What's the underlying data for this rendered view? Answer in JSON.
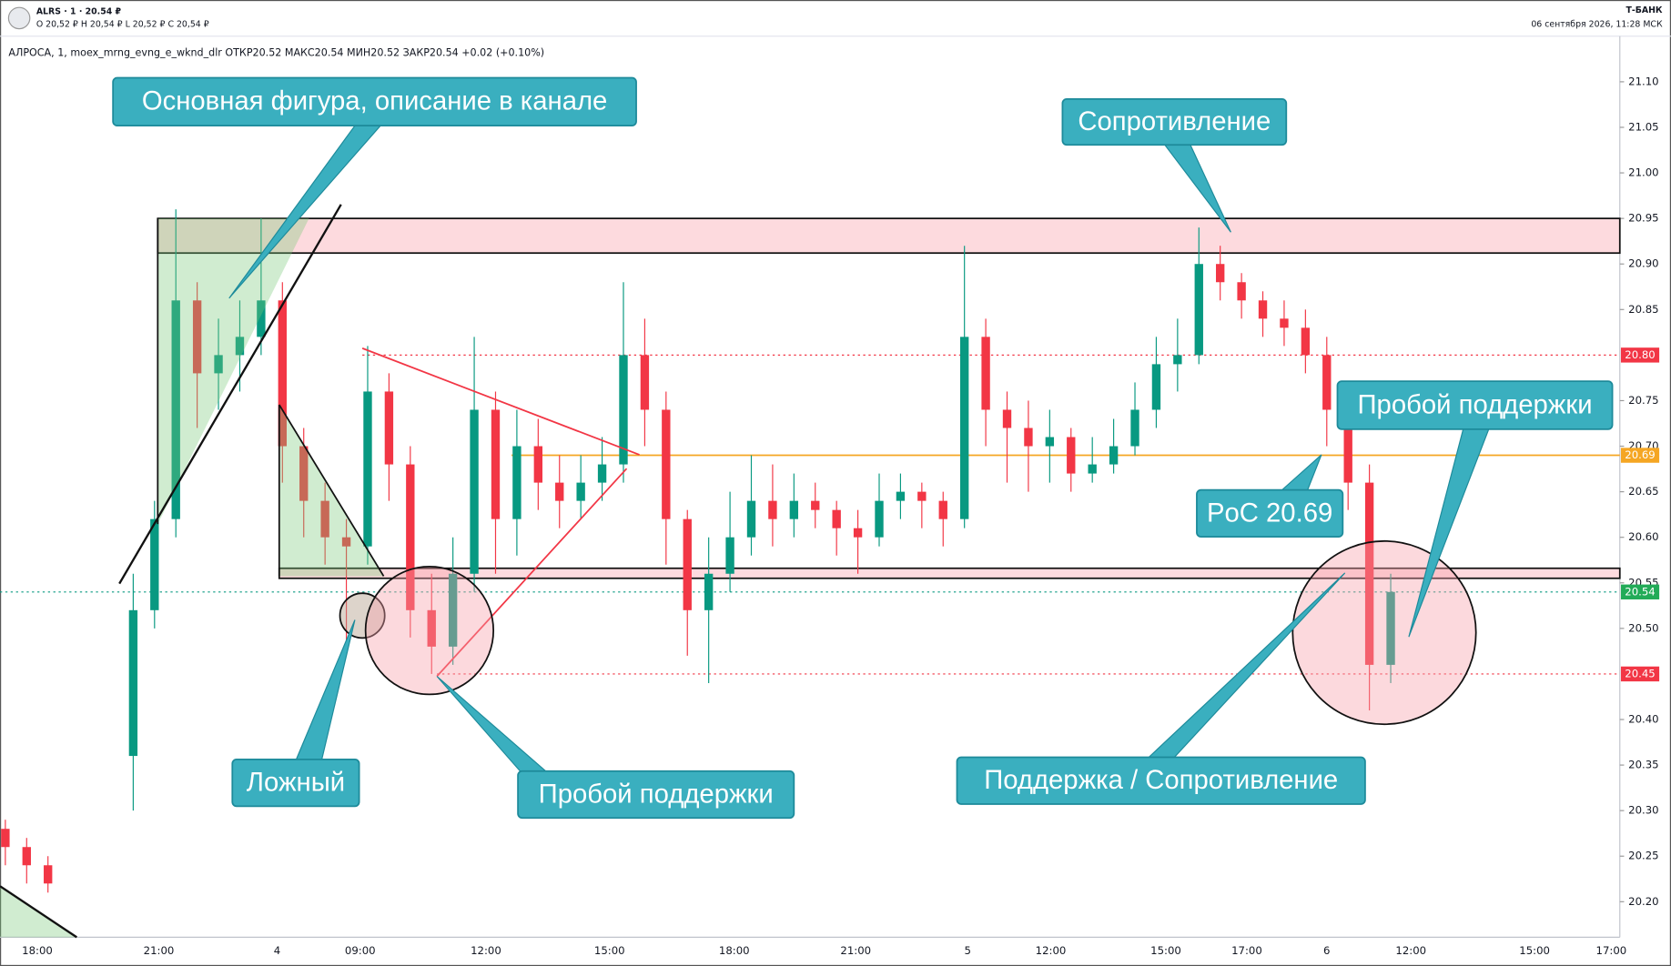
{
  "header": {
    "ticker": "ALRS · 1 · 20.54 ₽",
    "ohlc": "O 20,52 ₽  H 20,54 ₽  L 20,52 ₽  C 20,54 ₽",
    "brand": "Т-БАНК",
    "timestamp": "06 сентября 2026, 11:28 МСК",
    "legend": "АЛРОСА, 1, moex_mrng_evng_e_wknd_dlr  ОТКР20.52  МАКС20.54  МИН20.52  ЗАКР20.54  +0.02 (+0.10%)"
  },
  "chart_data": {
    "type": "candlestick",
    "up_color": "#089981",
    "down_color": "#f23645",
    "open": [
      20.28,
      20.26,
      20.24,
      null,
      null,
      null,
      20.36,
      20.52,
      20.62,
      20.86,
      20.78,
      20.8,
      20.82,
      20.86,
      20.7,
      20.64,
      20.6,
      20.59,
      20.76,
      20.68,
      20.52,
      20.48,
      20.56,
      20.74,
      20.62,
      20.7,
      20.66,
      20.64,
      20.66,
      20.68,
      20.8,
      20.74,
      20.62,
      20.52,
      20.56,
      20.6,
      20.64,
      20.62,
      20.64,
      20.63,
      20.61,
      20.6,
      20.64,
      20.65,
      20.64,
      20.62,
      20.82,
      20.74,
      20.72,
      20.7,
      20.71,
      20.67,
      20.68,
      20.7,
      20.74,
      20.79,
      20.8,
      20.9,
      20.88,
      20.86,
      20.84,
      20.83,
      20.8,
      20.74,
      20.66,
      20.46
    ],
    "high": [
      20.29,
      20.27,
      20.25,
      null,
      null,
      null,
      20.56,
      20.64,
      20.96,
      20.88,
      20.84,
      20.86,
      20.95,
      20.88,
      20.72,
      20.66,
      20.62,
      20.81,
      20.78,
      20.7,
      20.56,
      20.6,
      20.82,
      20.76,
      20.74,
      20.73,
      20.69,
      20.69,
      20.71,
      20.88,
      20.84,
      20.76,
      20.63,
      20.6,
      20.65,
      20.69,
      20.68,
      20.67,
      20.66,
      20.64,
      20.63,
      20.67,
      20.67,
      20.66,
      20.65,
      20.92,
      20.84,
      20.76,
      20.75,
      20.74,
      20.72,
      20.71,
      20.73,
      20.77,
      20.82,
      20.84,
      20.94,
      20.92,
      20.89,
      20.87,
      20.86,
      20.85,
      20.82,
      20.75,
      20.68,
      20.56
    ],
    "low": [
      20.24,
      20.22,
      20.21,
      null,
      null,
      null,
      20.3,
      20.5,
      20.6,
      20.72,
      20.74,
      20.76,
      20.8,
      20.66,
      20.6,
      20.57,
      20.48,
      20.57,
      20.64,
      20.49,
      20.45,
      20.46,
      20.54,
      20.56,
      20.58,
      20.63,
      20.61,
      20.62,
      20.64,
      20.66,
      20.7,
      20.57,
      20.47,
      20.44,
      20.54,
      20.58,
      20.59,
      20.6,
      20.61,
      20.58,
      20.56,
      20.59,
      20.62,
      20.61,
      20.59,
      20.61,
      20.7,
      20.66,
      20.65,
      20.66,
      20.65,
      20.66,
      20.67,
      20.69,
      20.72,
      20.76,
      20.79,
      20.86,
      20.84,
      20.82,
      20.81,
      20.78,
      20.7,
      20.63,
      20.41,
      20.44
    ],
    "close": [
      20.26,
      20.24,
      20.22,
      null,
      null,
      null,
      20.52,
      20.62,
      20.86,
      20.78,
      20.8,
      20.82,
      20.86,
      20.7,
      20.64,
      20.6,
      20.59,
      20.76,
      20.68,
      20.52,
      20.48,
      20.56,
      20.74,
      20.62,
      20.7,
      20.66,
      20.64,
      20.66,
      20.68,
      20.8,
      20.74,
      20.62,
      20.52,
      20.56,
      20.6,
      20.64,
      20.62,
      20.64,
      20.63,
      20.61,
      20.6,
      20.64,
      20.65,
      20.64,
      20.62,
      20.82,
      20.74,
      20.72,
      20.7,
      20.71,
      20.67,
      20.68,
      20.7,
      20.74,
      20.79,
      20.8,
      20.9,
      20.88,
      20.86,
      20.84,
      20.83,
      20.8,
      20.74,
      20.66,
      20.46,
      20.54
    ],
    "ylim": [
      20.161,
      21.143
    ],
    "yticks": [
      {
        "value": 20.2,
        "label": "20.20"
      },
      {
        "value": 20.25,
        "label": "20.25"
      },
      {
        "value": 20.3,
        "label": "20.30"
      },
      {
        "value": 20.35,
        "label": "20.35"
      },
      {
        "value": 20.4,
        "label": "20.40"
      },
      {
        "value": 20.5,
        "label": "20.50"
      },
      {
        "value": 20.55,
        "label": "20.55"
      },
      {
        "value": 20.6,
        "label": "20.60"
      },
      {
        "value": 20.65,
        "label": "20.65"
      },
      {
        "value": 20.7,
        "label": "20.70"
      },
      {
        "value": 20.75,
        "label": "20.75"
      },
      {
        "value": 20.85,
        "label": "20.85"
      },
      {
        "value": 20.9,
        "label": "20.90"
      },
      {
        "value": 20.95,
        "label": "20.95"
      },
      {
        "value": 21.0,
        "label": "21.00"
      },
      {
        "value": 21.05,
        "label": "21.05"
      },
      {
        "value": 21.1,
        "label": "21.10"
      }
    ],
    "x_axis_labels": [
      "18:00",
      "21:00",
      "4",
      "09:00",
      "12:00",
      "15:00",
      "18:00",
      "21:00",
      "5",
      "12:00",
      "15:00",
      "17:00",
      "6",
      "12:00",
      "15:00",
      "17:00"
    ],
    "price_lines": [
      {
        "value": 20.8,
        "label": "20.80",
        "color": "#f23645",
        "style": "dotted"
      },
      {
        "value": 20.69,
        "label": "20.69",
        "color": "#f5a623",
        "style": "solid"
      },
      {
        "value": 20.54,
        "label": "20.54",
        "color": "#089981",
        "style": "dotted"
      },
      {
        "value": 20.45,
        "label": "20.45",
        "color": "#f23645",
        "style": "dotted"
      }
    ],
    "zones": [
      {
        "low": 20.912,
        "high": 20.95
      },
      {
        "low": 20.555,
        "high": 20.566
      }
    ],
    "annotations": [
      "Основная фигура, описание в канале",
      "Сопротивление",
      "Пробой поддержки",
      "PoC 20.69",
      "Ложный",
      "Пробой поддержки",
      "Поддержка / Сопротивление"
    ]
  }
}
